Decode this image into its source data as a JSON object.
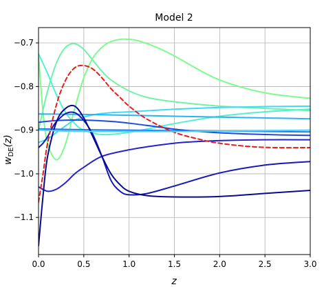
{
  "chart_data": {
    "type": "line",
    "title": "Model 2",
    "xlabel": "z",
    "ylabel_main": "w",
    "ylabel_sub": "DE",
    "ylabel_tail": "(z)",
    "xlim": [
      0,
      3
    ],
    "ylim": [
      -1.185,
      -0.665
    ],
    "x_ticks": [
      0.0,
      0.5,
      1.0,
      1.5,
      2.0,
      2.5,
      3.0
    ],
    "x_tick_labels": [
      "0.0",
      "0.5",
      "1.0",
      "1.5",
      "2.0",
      "2.5",
      "3.0"
    ],
    "y_ticks": [
      -0.7,
      -0.8,
      -0.9,
      -1.0,
      -1.1
    ],
    "y_tick_labels": [
      "−0.7",
      "−0.8",
      "−0.9",
      "−1.0",
      "−1.1"
    ],
    "grid": true,
    "series": [
      {
        "color": "#7dfc8c",
        "dashed": false,
        "x": [
          0,
          0.05,
          0.1,
          0.2,
          0.3,
          0.4,
          0.5,
          0.6,
          0.7,
          0.8,
          0.9,
          1.0,
          1.1,
          1.3,
          1.5,
          1.8,
          2.0,
          2.3,
          2.6,
          3.0
        ],
        "y": [
          -0.73,
          -0.86,
          -0.93,
          -0.968,
          -0.93,
          -0.85,
          -0.78,
          -0.735,
          -0.71,
          -0.697,
          -0.692,
          -0.692,
          -0.695,
          -0.71,
          -0.73,
          -0.765,
          -0.785,
          -0.805,
          -0.818,
          -0.827
        ]
      },
      {
        "color": "#6ff3a6",
        "dashed": false,
        "x": [
          0,
          0.1,
          0.2,
          0.3,
          0.4,
          0.5,
          0.6,
          0.7,
          0.8,
          1.0,
          1.2,
          1.5,
          2.0,
          2.5,
          3.0
        ],
        "y": [
          -0.9,
          -0.81,
          -0.745,
          -0.71,
          -0.702,
          -0.715,
          -0.74,
          -0.765,
          -0.785,
          -0.81,
          -0.825,
          -0.835,
          -0.845,
          -0.85,
          -0.855
        ]
      },
      {
        "color": "#4ff0d2",
        "dashed": false,
        "x": [
          0,
          0.1,
          0.2,
          0.3,
          0.4,
          0.5,
          0.7,
          1.0,
          1.5,
          2.0,
          2.5,
          3.0
        ],
        "y": [
          -0.725,
          -0.77,
          -0.82,
          -0.86,
          -0.885,
          -0.9,
          -0.91,
          -0.905,
          -0.885,
          -0.868,
          -0.858,
          -0.852
        ]
      },
      {
        "color": "#40d9f8",
        "dashed": false,
        "x": [
          0,
          0.1,
          0.2,
          0.3,
          0.4,
          0.6,
          0.8,
          1.0,
          1.5,
          2.0,
          2.5,
          3.0
        ],
        "y": [
          -0.928,
          -0.92,
          -0.905,
          -0.89,
          -0.877,
          -0.865,
          -0.86,
          -0.858,
          -0.852,
          -0.848,
          -0.846,
          -0.845
        ]
      },
      {
        "color": "#26b4f2",
        "dashed": false,
        "x": [
          0,
          0.5,
          1.0,
          1.5,
          2.0,
          2.5,
          3.0
        ],
        "y": [
          -0.863,
          -0.864,
          -0.866,
          -0.868,
          -0.87,
          -0.872,
          -0.874
        ]
      },
      {
        "color": "#1e7ff0",
        "dashed": false,
        "x": [
          0,
          0.5,
          1.0,
          1.5,
          2.0,
          2.5,
          3.0
        ],
        "y": [
          -0.897,
          -0.899,
          -0.9,
          -0.901,
          -0.902,
          -0.903,
          -0.904
        ]
      },
      {
        "color": "#1c4ae3",
        "dashed": false,
        "x": [
          0,
          0.2,
          0.5,
          0.8,
          1.0,
          1.3,
          1.6,
          2.0,
          2.5,
          3.0
        ],
        "y": [
          -0.882,
          -0.878,
          -0.877,
          -0.88,
          -0.884,
          -0.892,
          -0.9,
          -0.906,
          -0.91,
          -0.912
        ]
      },
      {
        "color": "#2222d0",
        "dashed": false,
        "x": [
          0,
          0.1,
          0.2,
          0.3,
          0.4,
          0.5,
          0.7,
          1.0,
          1.3,
          1.6,
          2.0,
          2.5,
          3.0
        ],
        "y": [
          -1.03,
          -1.04,
          -1.035,
          -1.02,
          -1.0,
          -0.985,
          -0.96,
          -0.945,
          -0.935,
          -0.928,
          -0.924,
          -0.922,
          -0.922
        ]
      },
      {
        "color": "#1418b8",
        "dashed": false,
        "x": [
          0,
          0.05,
          0.1,
          0.15,
          0.2,
          0.3,
          0.4,
          0.5,
          0.6,
          0.7,
          0.8,
          0.9,
          1.0,
          1.2,
          1.5,
          2.0,
          2.5,
          3.0
        ],
        "y": [
          -0.94,
          -0.93,
          -0.915,
          -0.895,
          -0.88,
          -0.862,
          -0.86,
          -0.878,
          -0.91,
          -0.96,
          -1.015,
          -1.04,
          -1.048,
          -1.045,
          -1.028,
          -0.998,
          -0.98,
          -0.972
        ]
      },
      {
        "color": "#0a0a8c",
        "dashed": false,
        "x": [
          0,
          0.05,
          0.1,
          0.2,
          0.3,
          0.4,
          0.5,
          0.6,
          0.7,
          0.8,
          0.9,
          1.0,
          1.2,
          1.5,
          2.0,
          2.5,
          3.0
        ],
        "y": [
          -1.165,
          -1.05,
          -0.96,
          -0.88,
          -0.85,
          -0.845,
          -0.872,
          -0.915,
          -0.96,
          -1.0,
          -1.025,
          -1.04,
          -1.05,
          -1.053,
          -1.052,
          -1.045,
          -1.038
        ]
      },
      {
        "color": "#e61c1c",
        "dashed": true,
        "x": [
          0,
          0.05,
          0.1,
          0.2,
          0.3,
          0.4,
          0.5,
          0.6,
          0.7,
          0.8,
          0.9,
          1.0,
          1.2,
          1.5,
          1.8,
          2.0,
          2.3,
          2.6,
          3.0
        ],
        "y": [
          -1.065,
          -1.0,
          -0.93,
          -0.84,
          -0.785,
          -0.757,
          -0.752,
          -0.76,
          -0.78,
          -0.805,
          -0.825,
          -0.845,
          -0.875,
          -0.905,
          -0.922,
          -0.93,
          -0.937,
          -0.94,
          -0.94
        ]
      },
      {
        "color": "#4fd2f7",
        "dashed": false,
        "x": [
          0,
          0.3,
          0.6,
          1.0,
          1.5,
          2.0,
          2.5,
          3.0
        ],
        "y": [
          -0.9,
          -0.902,
          -0.903,
          -0.903,
          -0.903,
          -0.902,
          -0.901,
          -0.9
        ]
      }
    ]
  }
}
